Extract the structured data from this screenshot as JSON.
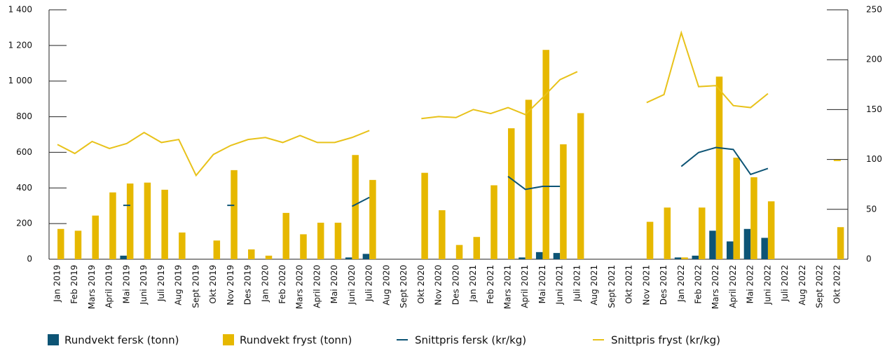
{
  "chart_data": {
    "type": "bar-line",
    "categories": [
      "Jan 2019",
      "Feb 2019",
      "Mars 2019",
      "April 2019",
      "Mai 2019",
      "Juni 2019",
      "Juli 2019",
      "Aug 2019",
      "Sept 2019",
      "Okt 2019",
      "Nov 2019",
      "Des 2019",
      "Jan 2020",
      "Feb 2020",
      "Mars 2020",
      "April 2020",
      "Mai 2020",
      "Juni 2020",
      "Juli 2020",
      "Aug 2020",
      "Sept 2020",
      "Okt 2020",
      "Nov 2020",
      "Des 2020",
      "Jan 2021",
      "Feb 2021",
      "Mars 2021",
      "April 2021",
      "Mai 2021",
      "Juni 2021",
      "Juli 2021",
      "Aug 2021",
      "Sept 2021",
      "Okt 2021",
      "Nov 2021",
      "Des 2021",
      "Jan 2022",
      "Feb 2022",
      "Mars 2022",
      "April 2022",
      "Mai 2022",
      "Juni 2022",
      "Juli 2022",
      "Aug 2022",
      "Sept 2022",
      "Okt 2022"
    ],
    "series": [
      {
        "name": "Rundvekt fersk (tonn)",
        "kind": "bar",
        "color": "#0d5475",
        "values": [
          null,
          null,
          null,
          null,
          20,
          null,
          null,
          null,
          null,
          null,
          null,
          null,
          null,
          null,
          null,
          null,
          null,
          10,
          30,
          null,
          null,
          null,
          null,
          null,
          null,
          null,
          null,
          10,
          40,
          35,
          null,
          null,
          null,
          null,
          null,
          null,
          10,
          20,
          160,
          100,
          170,
          120,
          null,
          null,
          null,
          null
        ]
      },
      {
        "name": "Rundvekt fryst (tonn)",
        "kind": "bar",
        "color": "#e6b800",
        "values": [
          170,
          160,
          245,
          375,
          425,
          430,
          390,
          150,
          null,
          105,
          500,
          55,
          20,
          260,
          140,
          205,
          205,
          585,
          445,
          null,
          null,
          485,
          275,
          80,
          125,
          415,
          735,
          895,
          1175,
          645,
          820,
          null,
          null,
          null,
          210,
          290,
          10,
          290,
          1025,
          570,
          460,
          325,
          null,
          null,
          null,
          180
        ]
      },
      {
        "name": "Snittpris fersk (kr/kg)",
        "kind": "line",
        "axis": "y2",
        "color": "#0d5475",
        "values": [
          null,
          null,
          null,
          null,
          54,
          null,
          null,
          null,
          null,
          null,
          54,
          null,
          null,
          null,
          null,
          null,
          null,
          53,
          62,
          null,
          null,
          null,
          null,
          null,
          null,
          null,
          83,
          70,
          73,
          73,
          null,
          null,
          null,
          null,
          null,
          null,
          93,
          107,
          112,
          110,
          85,
          91,
          null,
          null,
          null,
          null
        ]
      },
      {
        "name": "Snittpris fryst (kr/kg)",
        "kind": "line",
        "axis": "y2",
        "color": "#e8c21a",
        "values": [
          115,
          106,
          118,
          111,
          116,
          127,
          117,
          120,
          84,
          105,
          114,
          120,
          122,
          117,
          124,
          117,
          117,
          122,
          129,
          null,
          null,
          141,
          143,
          142,
          150,
          146,
          152,
          145,
          162,
          180,
          188,
          null,
          null,
          null,
          157,
          165,
          227,
          173,
          174,
          154,
          152,
          166,
          null,
          null,
          null,
          99
        ]
      }
    ],
    "ylim": [
      0,
      1400
    ],
    "yticks": [
      0,
      200,
      400,
      600,
      800,
      {
        "value": 1000,
        "label": "1 000"
      },
      {
        "value": 1200,
        "label": "1 200"
      },
      {
        "value": 1400,
        "label": "1 400"
      }
    ],
    "y2lim": [
      0,
      250
    ],
    "y2ticks": [
      0,
      50,
      100,
      150,
      200,
      250
    ]
  }
}
